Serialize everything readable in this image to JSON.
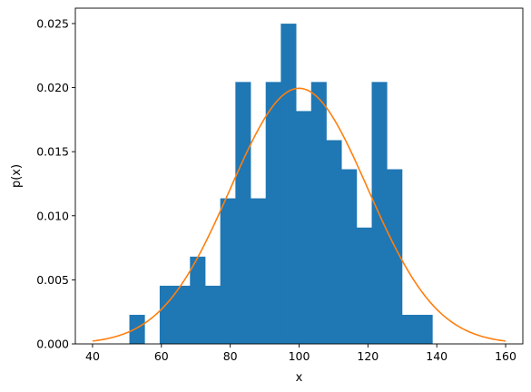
{
  "chart_data": {
    "type": "bar",
    "xlabel": "x",
    "ylabel": "p(x)",
    "xlim": [
      35,
      165
    ],
    "ylim": [
      0,
      0.0262
    ],
    "xticks": [
      40,
      60,
      80,
      100,
      120,
      140,
      160
    ],
    "yticks": [
      0.0,
      0.005,
      0.01,
      0.015,
      0.02,
      0.025
    ],
    "ytick_labels": [
      "0.000",
      "0.005",
      "0.010",
      "0.015",
      "0.020",
      "0.025"
    ],
    "grid": false,
    "colors": {
      "histogram": "#1f77b4",
      "curve": "#ff7f0e"
    },
    "series": [
      {
        "type": "histogram",
        "bins": [
          {
            "x0": 50.7,
            "x1": 55.1,
            "value": 0.00227
          },
          {
            "x0": 55.1,
            "x1": 59.5,
            "value": 0.0
          },
          {
            "x0": 59.5,
            "x1": 63.9,
            "value": 0.00454
          },
          {
            "x0": 63.9,
            "x1": 68.3,
            "value": 0.00454
          },
          {
            "x0": 68.3,
            "x1": 72.7,
            "value": 0.00681
          },
          {
            "x0": 72.7,
            "x1": 77.1,
            "value": 0.00454
          },
          {
            "x0": 77.1,
            "x1": 81.5,
            "value": 0.01136
          },
          {
            "x0": 81.5,
            "x1": 85.9,
            "value": 0.02044
          },
          {
            "x0": 85.9,
            "x1": 90.3,
            "value": 0.01136
          },
          {
            "x0": 90.3,
            "x1": 94.7,
            "value": 0.02044
          },
          {
            "x0": 94.7,
            "x1": 99.1,
            "value": 0.02499
          },
          {
            "x0": 99.1,
            "x1": 103.5,
            "value": 0.01817
          },
          {
            "x0": 103.5,
            "x1": 107.9,
            "value": 0.02044
          },
          {
            "x0": 107.9,
            "x1": 112.3,
            "value": 0.0159
          },
          {
            "x0": 112.3,
            "x1": 116.7,
            "value": 0.01363
          },
          {
            "x0": 116.7,
            "x1": 121.1,
            "value": 0.00908
          },
          {
            "x0": 121.1,
            "x1": 125.5,
            "value": 0.02044
          },
          {
            "x0": 125.5,
            "x1": 129.9,
            "value": 0.01363
          },
          {
            "x0": 129.9,
            "x1": 134.3,
            "value": 0.00227
          },
          {
            "x0": 134.3,
            "x1": 138.7,
            "value": 0.00227
          }
        ]
      },
      {
        "type": "line",
        "function": "normal_pdf",
        "mean": 100,
        "std": 20,
        "x_range": [
          40,
          160
        ]
      }
    ]
  }
}
